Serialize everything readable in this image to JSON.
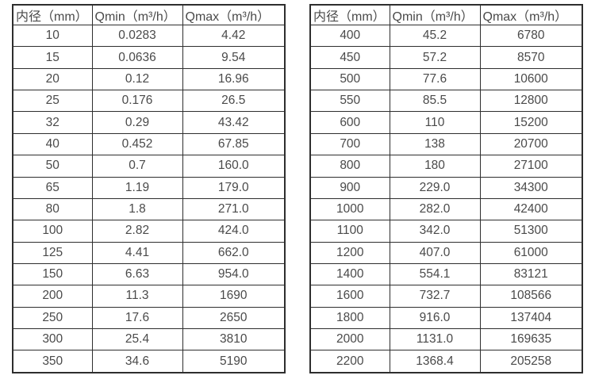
{
  "colors": {
    "background": "#ffffff",
    "border": "#2e2e2e",
    "text": "#4a4a4a"
  },
  "table_left": {
    "headers": [
      "内径（mm）",
      "Qmin（m³/h）",
      "Qmax（m³/h）"
    ],
    "rows": [
      [
        "10",
        "0.0283",
        "4.42"
      ],
      [
        "15",
        "0.0636",
        "9.54"
      ],
      [
        "20",
        "0.12",
        "16.96"
      ],
      [
        "25",
        "0.176",
        "26.5"
      ],
      [
        "32",
        "0.29",
        "43.42"
      ],
      [
        "40",
        "0.452",
        "67.85"
      ],
      [
        "50",
        "0.7",
        "160.0"
      ],
      [
        "65",
        "1.19",
        "179.0"
      ],
      [
        "80",
        "1.8",
        "271.0"
      ],
      [
        "100",
        "2.82",
        "424.0"
      ],
      [
        "125",
        "4.41",
        "662.0"
      ],
      [
        "150",
        "6.63",
        "954.0"
      ],
      [
        "200",
        "11.3",
        "1690"
      ],
      [
        "250",
        "17.6",
        "2650"
      ],
      [
        "300",
        "25.4",
        "3810"
      ],
      [
        "350",
        "34.6",
        "5190"
      ]
    ]
  },
  "table_right": {
    "headers": [
      "内径（mm）",
      "Qmin（m³/h）",
      "Qmax（m³/h）"
    ],
    "rows": [
      [
        "400",
        "45.2",
        "6780"
      ],
      [
        "450",
        "57.2",
        "8570"
      ],
      [
        "500",
        "77.6",
        "10600"
      ],
      [
        "550",
        "85.5",
        "12800"
      ],
      [
        "600",
        "110",
        "15200"
      ],
      [
        "700",
        "138",
        "20700"
      ],
      [
        "800",
        "180",
        "27100"
      ],
      [
        "900",
        "229.0",
        "34300"
      ],
      [
        "1000",
        "282.0",
        "42400"
      ],
      [
        "1100",
        "342.0",
        "51300"
      ],
      [
        "1200",
        "407.0",
        "61000"
      ],
      [
        "1400",
        "554.1",
        "83121"
      ],
      [
        "1600",
        "732.7",
        "108566"
      ],
      [
        "1800",
        "916.0",
        "137404"
      ],
      [
        "2000",
        "1131.0",
        "169635"
      ],
      [
        "2200",
        "1368.4",
        "205258"
      ]
    ]
  }
}
